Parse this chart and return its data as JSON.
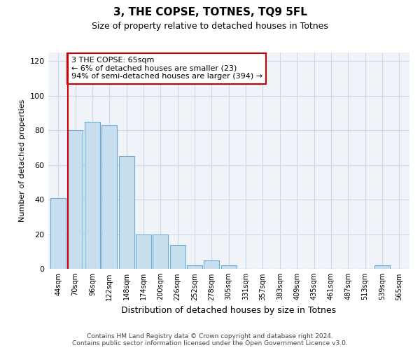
{
  "title": "3, THE COPSE, TOTNES, TQ9 5FL",
  "subtitle": "Size of property relative to detached houses in Totnes",
  "xlabel": "Distribution of detached houses by size in Totnes",
  "ylabel": "Number of detached properties",
  "categories": [
    "44sqm",
    "70sqm",
    "96sqm",
    "122sqm",
    "148sqm",
    "174sqm",
    "200sqm",
    "226sqm",
    "252sqm",
    "278sqm",
    "305sqm",
    "331sqm",
    "357sqm",
    "383sqm",
    "409sqm",
    "435sqm",
    "461sqm",
    "487sqm",
    "513sqm",
    "539sqm",
    "565sqm"
  ],
  "values": [
    41,
    80,
    85,
    83,
    65,
    20,
    20,
    14,
    2,
    5,
    2,
    0,
    0,
    0,
    0,
    0,
    0,
    0,
    0,
    2,
    0
  ],
  "bar_color": "#c8dff0",
  "bar_edge_color": "#6aaad4",
  "highlight_line_color": "#cc0000",
  "annotation_box_color": "#cc0000",
  "annotation_lines": [
    "3 THE COPSE: 65sqm",
    "← 6% of detached houses are smaller (23)",
    "94% of semi-detached houses are larger (394) →"
  ],
  "ylim": [
    0,
    125
  ],
  "yticks": [
    0,
    20,
    40,
    60,
    80,
    100,
    120
  ],
  "footer_line1": "Contains HM Land Registry data © Crown copyright and database right 2024.",
  "footer_line2": "Contains public sector information licensed under the Open Government Licence v3.0.",
  "background_color": "#f0f4f8",
  "grid_color": "#c8d8e8"
}
